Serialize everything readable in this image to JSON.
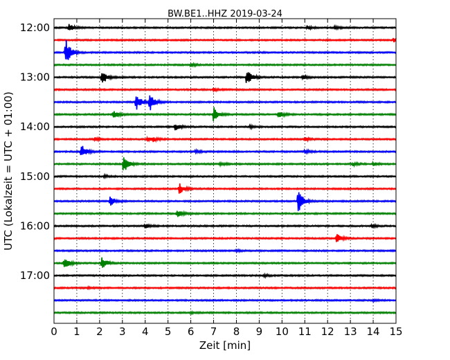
{
  "chart_data": {
    "type": "line",
    "title": "BW.BE1..HHZ 2019-03-24",
    "xlabel": "Zeit  [min]",
    "ylabel": "UTC (Lokalzeit = UTC + 01:00)",
    "xlim": [
      0,
      15
    ],
    "x_ticks": [
      0,
      1,
      2,
      3,
      4,
      5,
      6,
      7,
      8,
      9,
      10,
      11,
      12,
      13,
      14,
      15
    ],
    "x_tick_labels": [
      "0",
      "1",
      "2",
      "3",
      "4",
      "5",
      "6",
      "7",
      "8",
      "9",
      "10",
      "11",
      "12",
      "13",
      "14",
      "15"
    ],
    "y_tick_labels": [
      {
        "row": 0,
        "label": "12:00"
      },
      {
        "row": 4,
        "label": "13:00"
      },
      {
        "row": 8,
        "label": "14:00"
      },
      {
        "row": 12,
        "label": "15:00"
      },
      {
        "row": 16,
        "label": "16:00"
      },
      {
        "row": 20,
        "label": "17:00"
      }
    ],
    "grid": "vertical dotted",
    "trace_colors": [
      "#000000",
      "#ff0000",
      "#0000ff",
      "#008000"
    ],
    "traces": [
      {
        "start": "12:00",
        "events": [
          {
            "t": 0.65,
            "amp": 0.25
          },
          {
            "t": 11.1,
            "amp": 0.12
          },
          {
            "t": 12.3,
            "amp": 0.1
          }
        ]
      },
      {
        "start": "12:15",
        "events": [
          {
            "t": 14.9,
            "amp": 0.15
          }
        ]
      },
      {
        "start": "12:30",
        "events": [
          {
            "t": 0.5,
            "amp": 1.0
          }
        ]
      },
      {
        "start": "12:45",
        "events": [
          {
            "t": 6.0,
            "amp": 0.1
          }
        ]
      },
      {
        "start": "13:00",
        "events": [
          {
            "t": 2.1,
            "amp": 0.5
          },
          {
            "t": 8.45,
            "amp": 0.55
          },
          {
            "t": 10.9,
            "amp": 0.12
          }
        ]
      },
      {
        "start": "13:15",
        "events": [
          {
            "t": 7.0,
            "amp": 0.08
          }
        ]
      },
      {
        "start": "13:30",
        "events": [
          {
            "t": 3.6,
            "amp": 0.55
          },
          {
            "t": 4.2,
            "amp": 0.6
          }
        ]
      },
      {
        "start": "13:45",
        "events": [
          {
            "t": 2.6,
            "amp": 0.3
          },
          {
            "t": 7.0,
            "amp": 0.5
          },
          {
            "t": 9.85,
            "amp": 0.25
          }
        ]
      },
      {
        "start": "14:00",
        "events": [
          {
            "t": 5.3,
            "amp": 0.25
          },
          {
            "t": 8.6,
            "amp": 0.1
          }
        ]
      },
      {
        "start": "14:15",
        "events": [
          {
            "t": 1.8,
            "amp": 0.1
          },
          {
            "t": 4.1,
            "amp": 0.12
          },
          {
            "t": 4.3,
            "amp": 0.15
          },
          {
            "t": 11.0,
            "amp": 0.1
          }
        ]
      },
      {
        "start": "14:30",
        "events": [
          {
            "t": 1.2,
            "amp": 0.5
          },
          {
            "t": 6.2,
            "amp": 0.1
          },
          {
            "t": 11.0,
            "amp": 0.12
          }
        ]
      },
      {
        "start": "14:45",
        "events": [
          {
            "t": 3.05,
            "amp": 0.6
          },
          {
            "t": 7.3,
            "amp": 0.1
          },
          {
            "t": 13.1,
            "amp": 0.1
          },
          {
            "t": 14.0,
            "amp": 0.1
          }
        ]
      },
      {
        "start": "15:00",
        "events": [
          {
            "t": 2.2,
            "amp": 0.08
          }
        ]
      },
      {
        "start": "15:15",
        "events": [
          {
            "t": 5.5,
            "amp": 0.35
          }
        ]
      },
      {
        "start": "15:30",
        "events": [
          {
            "t": 2.45,
            "amp": 0.35
          },
          {
            "t": 10.7,
            "amp": 0.85
          }
        ]
      },
      {
        "start": "15:45",
        "events": [
          {
            "t": 5.4,
            "amp": 0.25
          }
        ]
      },
      {
        "start": "16:00",
        "events": [
          {
            "t": 4.0,
            "amp": 0.15
          },
          {
            "t": 13.95,
            "amp": 0.1
          }
        ]
      },
      {
        "start": "16:15",
        "events": [
          {
            "t": 12.4,
            "amp": 0.3
          }
        ]
      },
      {
        "start": "16:30",
        "events": [
          {
            "t": 8.0,
            "amp": 0.05
          }
        ]
      },
      {
        "start": "16:45",
        "events": [
          {
            "t": 0.45,
            "amp": 0.4
          },
          {
            "t": 2.1,
            "amp": 0.45
          }
        ]
      },
      {
        "start": "17:00",
        "events": [
          {
            "t": 9.2,
            "amp": 0.08
          }
        ]
      },
      {
        "start": "17:15",
        "events": [
          {
            "t": 1.5,
            "amp": 0.06
          }
        ]
      },
      {
        "start": "17:30",
        "events": [
          {
            "t": 14.0,
            "amp": 0.06
          }
        ]
      },
      {
        "start": "17:45",
        "events": [
          {
            "t": 6.0,
            "amp": 0.05
          }
        ]
      }
    ]
  }
}
